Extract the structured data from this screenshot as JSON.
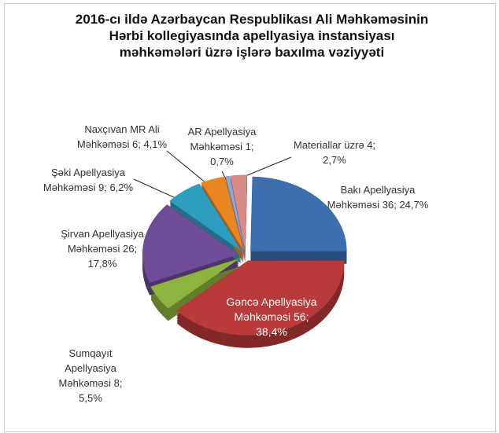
{
  "chart_data": {
    "type": "pie",
    "title": "2016-cı ildə Azərbaycan Respublikası Ali Məhkəməsinin Hərbi kollegiyasında apellyasiya instansiyası məhkəmələri üzrə işlərə baxılma vəziyyəti",
    "categories": [
      "Bakı Apellyasiya Məhkəməsi",
      "Gəncə Apellyasiya Məhkəməsi",
      "Sumqayıt Apellyasiya Məhkəməsi",
      "Şirvan Apellyasiya Məhkəməsi",
      "Şəki Apellyasiya Məhkəməsi",
      "Naxçıvan MR Ali Məhkəməsi",
      "AR Apellyasiya Məhkəməsi",
      "Materiallar üzrə"
    ],
    "values": [
      36,
      56,
      8,
      26,
      9,
      6,
      1,
      4
    ],
    "value_labels": [
      "36; 24,7%",
      "56; 38,4%",
      "8; 5,5%",
      "26; 17,8%",
      "9; 6,2%",
      "6; 4,1%",
      "1; 0,7%",
      "4; 2,7%"
    ],
    "colors": [
      "#3d6eb0",
      "#b93b39",
      "#8db43e",
      "#6e4c98",
      "#2e9ec0",
      "#ea861f",
      "#8ea9d9",
      "#d98b8a"
    ]
  }
}
